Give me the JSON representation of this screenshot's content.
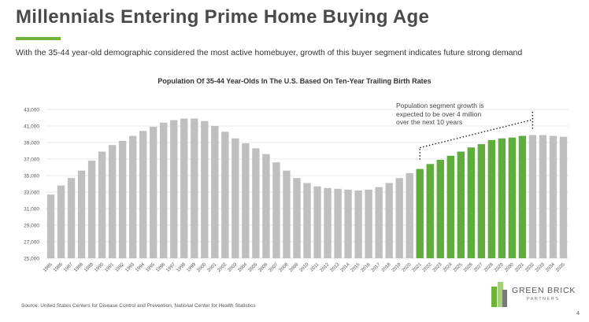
{
  "header": {
    "title": "Millennials Entering Prime Home Buying Age",
    "subtitle": "With the 35-44 year-old demographic considered the most active homebuyer, growth of this buyer segment indicates future strong demand"
  },
  "annotation": {
    "line1": "Population segment growth is",
    "line2": "expected to be over 4 million",
    "line3": "over the next 10 years"
  },
  "footer": {
    "source": "Source: United States Centers for Disease Control and Prevention, National Center for Health Statistics",
    "page_number": "4"
  },
  "logo": {
    "name": "GREEN BRICK",
    "sub": "PARTNERS"
  },
  "colors": {
    "accent": "#6fb23a",
    "historical_bar": "#bfbfbf",
    "projected_bar": "#5fae3c",
    "title_text": "#4a4a4a"
  },
  "chart_data": {
    "type": "bar",
    "title": "Population Of 35-44 Year-Olds In The U.S. Based On Ten-Year Trailing Birth Rates",
    "xlabel": "",
    "ylabel": "",
    "ylim": [
      25000,
      43000
    ],
    "yticks": [
      "25,000",
      "27,000",
      "29,000",
      "31,000",
      "33,000",
      "35,000",
      "37,000",
      "39,000",
      "41,000",
      "43,000"
    ],
    "grid": true,
    "categories": [
      "1985",
      "1986",
      "1987",
      "1988",
      "1989",
      "1990",
      "1991",
      "1992",
      "1993",
      "1994",
      "1995",
      "1996",
      "1997",
      "1998",
      "1999",
      "2000",
      "2001",
      "2002",
      "2003",
      "2004",
      "2005",
      "2006",
      "2007",
      "2008",
      "2009",
      "2010",
      "2011",
      "2012",
      "2013",
      "2014",
      "2015",
      "2016",
      "2017",
      "2018",
      "2019",
      "2020",
      "2021",
      "2022",
      "2023",
      "2024",
      "2025",
      "2026",
      "2027",
      "2028",
      "2029",
      "2030",
      "2031",
      "2032",
      "2033",
      "2034",
      "2035"
    ],
    "values": [
      32700,
      33800,
      34700,
      35600,
      36800,
      37900,
      38700,
      39200,
      39800,
      40400,
      40900,
      41400,
      41700,
      41900,
      41900,
      41600,
      41000,
      40300,
      39500,
      38900,
      38300,
      37600,
      36600,
      35600,
      34700,
      34100,
      33700,
      33500,
      33400,
      33300,
      33200,
      33300,
      33600,
      34100,
      34700,
      35300,
      35800,
      36400,
      36900,
      37400,
      37900,
      38400,
      38800,
      39300,
      39500,
      39600,
      39800,
      39900,
      39900,
      39800,
      39700
    ],
    "highlight_categories": [
      "2021",
      "2022",
      "2023",
      "2024",
      "2025",
      "2026",
      "2027",
      "2028",
      "2029",
      "2030",
      "2031"
    ]
  }
}
